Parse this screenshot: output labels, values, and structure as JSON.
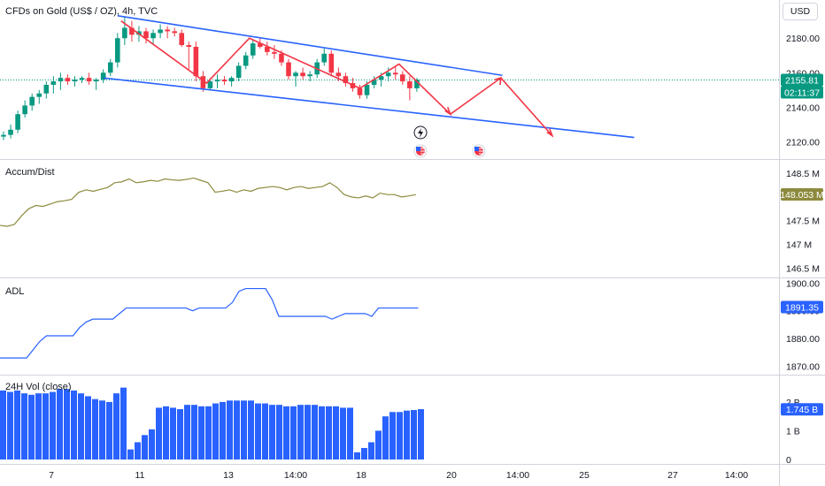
{
  "header": {
    "title": "CFDs on Gold (US$ / OZ), 4h, TVC"
  },
  "currency_button": "USD",
  "chart_data": {
    "type": "candlestick",
    "price_pane": {
      "ylim": [
        2110,
        2197
      ],
      "yticks": [
        "2180.00",
        "2160.00",
        "2140.00",
        "2120.00"
      ],
      "ytick_values": [
        2180,
        2160,
        2140,
        2120
      ],
      "last_price": "2155.81",
      "countdown": "02:11:37",
      "colors": {
        "up": "#089981",
        "down": "#f23645",
        "channel": "#2962ff",
        "projection": "#f23645"
      },
      "candles": [
        [
          2123,
          2126,
          2121,
          2124
        ],
        [
          2124,
          2130,
          2122,
          2127
        ],
        [
          2127,
          2138,
          2125,
          2136
        ],
        [
          2136,
          2144,
          2134,
          2141
        ],
        [
          2141,
          2148,
          2138,
          2146
        ],
        [
          2146,
          2150,
          2142,
          2148
        ],
        [
          2148,
          2155,
          2145,
          2153
        ],
        [
          2153,
          2158,
          2148,
          2155
        ],
        [
          2155,
          2160,
          2150,
          2157
        ],
        [
          2157,
          2159,
          2153,
          2155
        ],
        [
          2155,
          2158,
          2152,
          2156
        ],
        [
          2156,
          2158,
          2154,
          2157
        ],
        [
          2157,
          2160,
          2153,
          2155
        ],
        [
          2155,
          2157,
          2150,
          2156
        ],
        [
          2156,
          2162,
          2154,
          2160
        ],
        [
          2160,
          2168,
          2158,
          2166
        ],
        [
          2166,
          2183,
          2163,
          2180
        ],
        [
          2180,
          2192,
          2176,
          2186
        ],
        [
          2186,
          2190,
          2178,
          2182
        ],
        [
          2182,
          2187,
          2178,
          2184
        ],
        [
          2184,
          2186,
          2177,
          2180
        ],
        [
          2180,
          2185,
          2176,
          2183
        ],
        [
          2183,
          2188,
          2180,
          2185
        ],
        [
          2185,
          2187,
          2180,
          2184
        ],
        [
          2184,
          2186,
          2181,
          2183
        ],
        [
          2183,
          2185,
          2175,
          2176
        ],
        [
          2176,
          2178,
          2162,
          2175
        ],
        [
          2175,
          2178,
          2155,
          2158
        ],
        [
          2158,
          2161,
          2149,
          2151
        ],
        [
          2151,
          2157,
          2150,
          2155
        ],
        [
          2155,
          2159,
          2151,
          2156
        ],
        [
          2156,
          2158,
          2153,
          2155
        ],
        [
          2155,
          2158,
          2152,
          2157
        ],
        [
          2157,
          2166,
          2155,
          2164
        ],
        [
          2164,
          2172,
          2162,
          2170
        ],
        [
          2170,
          2179,
          2168,
          2177
        ],
        [
          2177,
          2180,
          2174,
          2175
        ],
        [
          2175,
          2178,
          2170,
          2172
        ],
        [
          2172,
          2176,
          2168,
          2171
        ],
        [
          2171,
          2173,
          2164,
          2166
        ],
        [
          2166,
          2168,
          2156,
          2158
        ],
        [
          2158,
          2161,
          2152,
          2160
        ],
        [
          2160,
          2163,
          2156,
          2158
        ],
        [
          2158,
          2161,
          2155,
          2159
        ],
        [
          2159,
          2168,
          2157,
          2166
        ],
        [
          2166,
          2174,
          2164,
          2171
        ],
        [
          2171,
          2173,
          2158,
          2160
        ],
        [
          2160,
          2163,
          2155,
          2158
        ],
        [
          2158,
          2160,
          2152,
          2154
        ],
        [
          2154,
          2157,
          2149,
          2151
        ],
        [
          2151,
          2153,
          2145,
          2147
        ],
        [
          2147,
          2155,
          2145,
          2153
        ],
        [
          2153,
          2158,
          2151,
          2156
        ],
        [
          2156,
          2160,
          2152,
          2158
        ],
        [
          2158,
          2163,
          2155,
          2160
        ],
        [
          2160,
          2164,
          2156,
          2159
        ],
        [
          2159,
          2161,
          2153,
          2155
        ],
        [
          2155,
          2158,
          2144,
          2151
        ],
        [
          2151,
          2157,
          2149,
          2156
        ]
      ]
    },
    "accum_pane": {
      "title": "Accum/Dist",
      "ylim": [
        146.3,
        148.8
      ],
      "yticks": [
        "148.5 M",
        "148 M",
        "147.5 M",
        "147 M",
        "146.5 M"
      ],
      "ytick_values": [
        148.5,
        148,
        147.5,
        147,
        146.5
      ],
      "last_value": "148.053 M",
      "color": "#8d8a3e",
      "values": [
        147.4,
        147.38,
        147.42,
        147.6,
        147.75,
        147.82,
        147.8,
        147.85,
        147.9,
        147.92,
        147.95,
        148.1,
        148.15,
        148.12,
        148.16,
        148.2,
        148.3,
        148.32,
        148.38,
        148.3,
        148.32,
        148.35,
        148.33,
        148.38,
        148.36,
        148.35,
        148.37,
        148.4,
        148.35,
        148.3,
        148.1,
        148.12,
        148.15,
        148.1,
        148.15,
        148.12,
        148.18,
        148.2,
        148.22,
        148.2,
        148.15,
        148.2,
        148.22,
        148.18,
        148.2,
        148.22,
        148.3,
        148.2,
        148.05,
        148.0,
        147.98,
        148.02,
        147.98,
        148.08,
        148.05,
        148.05,
        148.0,
        148.02,
        148.05
      ]
    },
    "adl_pane": {
      "title": "ADL",
      "ylim": [
        1867,
        1902
      ],
      "yticks": [
        "1900.00",
        "1890.00",
        "1880.00",
        "1870.00"
      ],
      "ytick_values": [
        1900,
        1890,
        1880,
        1870
      ],
      "last_value": "1891.35",
      "color": "#2962ff",
      "values": [
        1873,
        1873,
        1873,
        1873,
        1873,
        1876,
        1879,
        1881,
        1881,
        1881,
        1881,
        1881,
        1884,
        1886,
        1887,
        1887,
        1887,
        1887,
        1889,
        1891,
        1891,
        1891,
        1891,
        1891,
        1891,
        1891,
        1891,
        1891,
        1891,
        1890,
        1891,
        1891,
        1891,
        1891,
        1891,
        1893,
        1897,
        1898,
        1898,
        1898,
        1898,
        1894,
        1888,
        1888,
        1888,
        1888,
        1888,
        1888,
        1888,
        1888,
        1887,
        1888,
        1889,
        1889,
        1889,
        1889,
        1888,
        1891,
        1891,
        1891,
        1891,
        1891,
        1891,
        1891
      ]
    },
    "vol_pane": {
      "title": "24H Vol (close)",
      "ylim": [
        0,
        2.95
      ],
      "yticks": [
        "2 B",
        "1 B",
        "0"
      ],
      "ytick_values": [
        2,
        1,
        0
      ],
      "last_value": "1.745 B",
      "color": "#2962ff",
      "values": [
        2.4,
        2.35,
        2.4,
        2.3,
        2.25,
        2.3,
        2.3,
        2.35,
        2.45,
        2.45,
        2.4,
        2.3,
        2.2,
        2.1,
        2.05,
        2.0,
        2.3,
        2.5,
        0.35,
        0.6,
        0.85,
        1.05,
        1.8,
        1.85,
        1.8,
        1.75,
        1.9,
        1.9,
        1.85,
        1.85,
        1.95,
        2.0,
        2.05,
        2.05,
        2.05,
        2.05,
        1.95,
        1.95,
        1.9,
        1.9,
        1.85,
        1.85,
        1.9,
        1.9,
        1.9,
        1.85,
        1.85,
        1.85,
        1.8,
        1.8,
        0.25,
        0.4,
        0.6,
        1.0,
        1.5,
        1.65,
        1.65,
        1.7,
        1.72,
        1.75
      ]
    },
    "x_labels": [
      "7",
      "11",
      "13",
      "14:00",
      "18",
      "20",
      "14:00",
      "25",
      "27",
      "14:00"
    ]
  }
}
